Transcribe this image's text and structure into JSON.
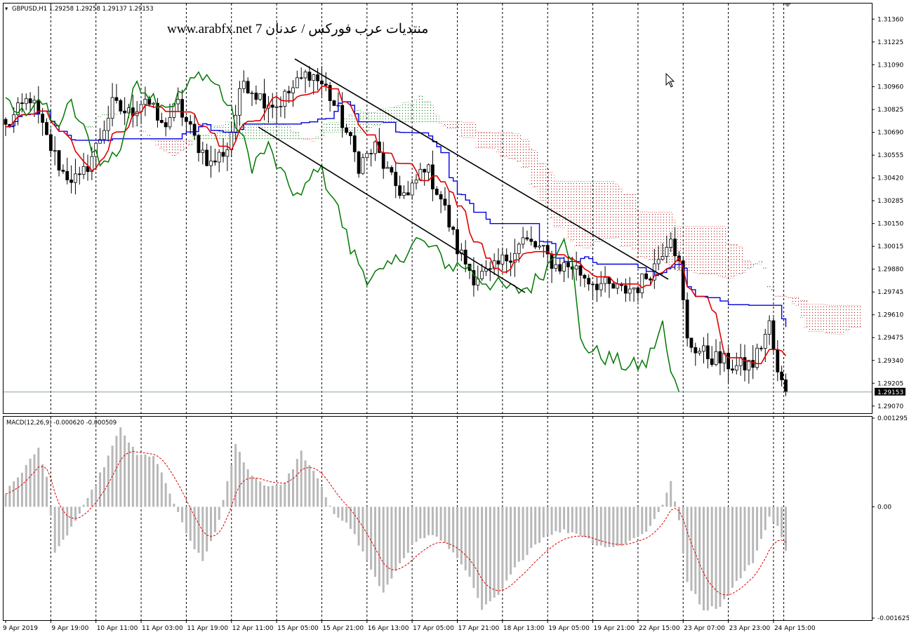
{
  "header": {
    "symbol_line": "GBPUSD,H1  1.29258 1.29258 1.29137 1.29153",
    "watermark": "www.arabfx.net 7 منتديات عرب فوركس / عدنان"
  },
  "macd_panel": {
    "label": "MACD(12,26,9) -0.000620 -0.000509"
  },
  "colors": {
    "candle": "#000000",
    "tenkan": "#e00000",
    "kijun": "#0000dd",
    "chikou": "#007800",
    "cloud_bull": "#007800",
    "cloud_bear": "#b00000",
    "macd_hist": "#b8b8b8",
    "macd_signal": "#e00000",
    "grid": "#000000"
  },
  "chart_data": [
    {
      "type": "candlestick",
      "panel": "price",
      "symbol": "GBPUSD",
      "timeframe": "H1",
      "bid_line": 1.29153,
      "y_ticks": [
        1.3136,
        1.31225,
        1.3109,
        1.3096,
        1.30825,
        1.3069,
        1.30555,
        1.3042,
        1.30285,
        1.3015,
        1.30015,
        1.2988,
        1.29745,
        1.2961,
        1.29475,
        1.2934,
        1.29205,
        1.2907
      ],
      "y_tick_labels": [
        "1.31360",
        "1.31225",
        "1.31090",
        "1.30960",
        "1.30825",
        "1.30690",
        "1.30555",
        "1.30420",
        "1.30285",
        "1.30150",
        "1.30015",
        "1.29880",
        "1.29745",
        "1.29610",
        "1.29475",
        "1.29340",
        "1.29205",
        "1.29070"
      ],
      "bid_label": "1.29153",
      "ylim": [
        1.2904,
        1.3144
      ],
      "x_labels": [
        "9 Apr 2019",
        "9 Apr 19:00",
        "10 Apr 11:00",
        "11 Apr 03:00",
        "11 Apr 19:00",
        "12 Apr 11:00",
        "15 Apr 05:00",
        "15 Apr 21:00",
        "16 Apr 13:00",
        "17 Apr 05:00",
        "17 Apr 21:00",
        "18 Apr 13:00",
        "19 Apr 05:00",
        "19 Apr 21:00",
        "22 Apr 15:00",
        "23 Apr 07:00",
        "23 Apr 23:00",
        "24 Apr 15:00"
      ],
      "close_path_anchors": [
        [
          0,
          1.3072
        ],
        [
          6,
          1.309
        ],
        [
          10,
          1.3065
        ],
        [
          14,
          1.3045
        ],
        [
          18,
          1.304
        ],
        [
          22,
          1.306
        ],
        [
          26,
          1.3085
        ],
        [
          30,
          1.308
        ],
        [
          34,
          1.309
        ],
        [
          38,
          1.3072
        ],
        [
          42,
          1.3085
        ],
        [
          46,
          1.3065
        ],
        [
          50,
          1.305
        ],
        [
          54,
          1.306
        ],
        [
          58,
          1.31
        ],
        [
          62,
          1.309
        ],
        [
          66,
          1.3085
        ],
        [
          70,
          1.3095
        ],
        [
          74,
          1.3105
        ],
        [
          78,
          1.3095
        ],
        [
          82,
          1.3075
        ],
        [
          86,
          1.305
        ],
        [
          90,
          1.306
        ],
        [
          94,
          1.304
        ],
        [
          98,
          1.303
        ],
        [
          102,
          1.305
        ],
        [
          106,
          1.303
        ],
        [
          110,
          1.3
        ],
        [
          114,
          1.2984
        ],
        [
          118,
          1.2985
        ],
        [
          122,
          1.2995
        ],
        [
          126,
          1.3005
        ],
        [
          130,
          1.3
        ],
        [
          134,
          1.299
        ],
        [
          138,
          1.299
        ],
        [
          142,
          1.2982
        ],
        [
          146,
          1.2978
        ],
        [
          150,
          1.2975
        ],
        [
          154,
          1.2978
        ],
        [
          158,
          1.299
        ],
        [
          162,
          1.301
        ],
        [
          164,
          1.299
        ],
        [
          166,
          1.2945
        ],
        [
          170,
          1.2938
        ],
        [
          174,
          1.2934
        ],
        [
          178,
          1.293
        ],
        [
          182,
          1.2932
        ],
        [
          186,
          1.2955
        ],
        [
          188,
          1.2925
        ],
        [
          190,
          1.2916
        ]
      ]
    },
    {
      "type": "bar",
      "panel": "indicator",
      "indicator": "MACD",
      "params": [
        12,
        26,
        9
      ],
      "main": -0.00062,
      "signal": -0.000509,
      "y_ticks": [
        0.001295,
        0.0,
        -0.001625
      ],
      "y_tick_labels": [
        "0.001295",
        "0.00",
        "-0.001625"
      ],
      "ylim": [
        -0.001625,
        0.001295
      ],
      "histogram_anchors": [
        [
          0,
          0.0002
        ],
        [
          5,
          0.0006
        ],
        [
          8,
          0.00085
        ],
        [
          10,
          0.00045
        ],
        [
          12,
          -0.0007
        ],
        [
          16,
          -0.0003
        ],
        [
          20,
          0.0001
        ],
        [
          24,
          0.0006
        ],
        [
          28,
          0.00115
        ],
        [
          32,
          0.00075
        ],
        [
          36,
          0.00075
        ],
        [
          40,
          0.0002
        ],
        [
          44,
          -0.0004
        ],
        [
          48,
          -0.0008
        ],
        [
          52,
          -0.0002
        ],
        [
          56,
          0.0009
        ],
        [
          60,
          0.00045
        ],
        [
          64,
          0.0003
        ],
        [
          68,
          0.00035
        ],
        [
          72,
          0.0008
        ],
        [
          76,
          0.0004
        ],
        [
          80,
          -0.0001
        ],
        [
          84,
          -0.0003
        ],
        [
          88,
          -0.0008
        ],
        [
          92,
          -0.00128
        ],
        [
          96,
          -0.0008
        ],
        [
          100,
          -0.0005
        ],
        [
          104,
          -0.0004
        ],
        [
          108,
          -0.0006
        ],
        [
          112,
          -0.0009
        ],
        [
          116,
          -0.0015
        ],
        [
          120,
          -0.0013
        ],
        [
          124,
          -0.0009
        ],
        [
          128,
          -0.0006
        ],
        [
          132,
          -0.0004
        ],
        [
          136,
          -0.00035
        ],
        [
          140,
          -0.0004
        ],
        [
          144,
          -0.00055
        ],
        [
          148,
          -0.0006
        ],
        [
          152,
          -0.0005
        ],
        [
          156,
          -0.00035
        ],
        [
          159,
          -0.0001
        ],
        [
          162,
          0.00035
        ],
        [
          164,
          -0.0002
        ],
        [
          166,
          -0.0011
        ],
        [
          170,
          -0.0015
        ],
        [
          174,
          -0.00145
        ],
        [
          178,
          -0.0011
        ],
        [
          182,
          -0.0008
        ],
        [
          186,
          -0.00015
        ],
        [
          188,
          -0.0003
        ],
        [
          190,
          -0.00062
        ]
      ]
    }
  ]
}
